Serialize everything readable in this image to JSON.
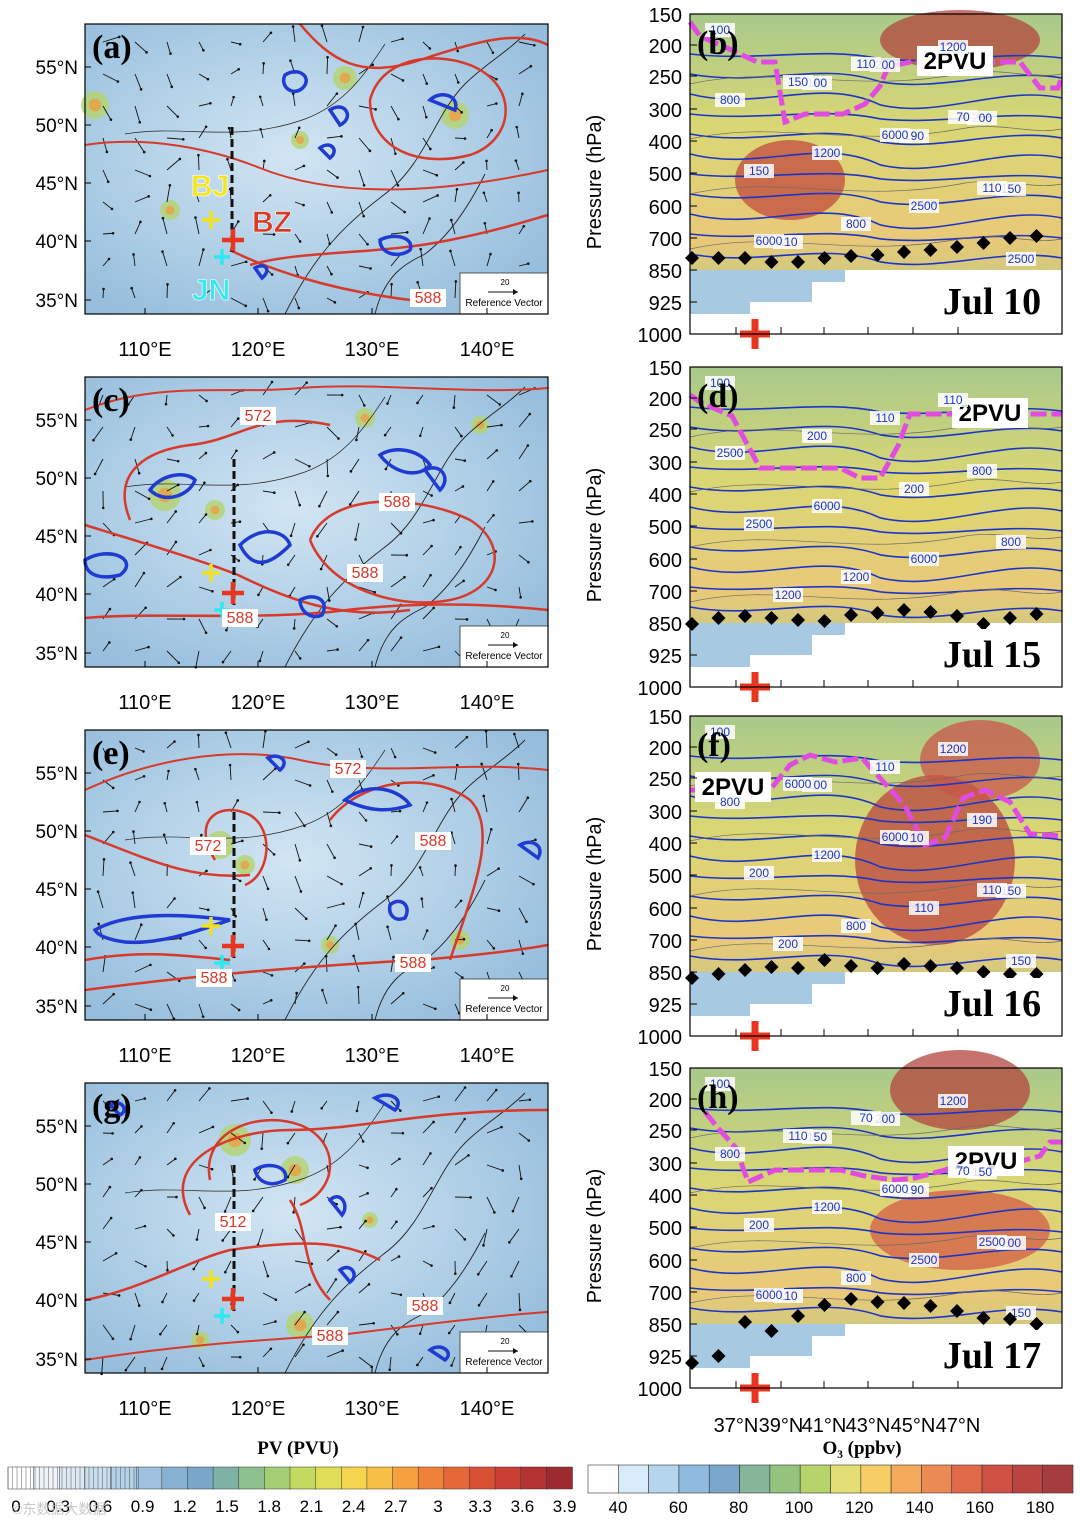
{
  "figure": {
    "maps": [
      {
        "panel_label": "(a)",
        "contour_labels": [
          "588"
        ],
        "site_labels": [
          "BJ",
          "BZ",
          "JN"
        ]
      },
      {
        "panel_label": "(c)",
        "contour_labels": [
          "588",
          "588",
          "588",
          "572"
        ],
        "site_labels": []
      },
      {
        "panel_label": "(e)",
        "contour_labels": [
          "588",
          "588",
          "588",
          "572",
          "572"
        ],
        "site_labels": []
      },
      {
        "panel_label": "(g)",
        "contour_labels": [
          "588",
          "588",
          "512"
        ],
        "site_labels": []
      }
    ],
    "map_lat_ticks": [
      "55°N",
      "50°N",
      "45°N",
      "40°N",
      "35°N"
    ],
    "map_lon_ticks": [
      "110°E",
      "120°E",
      "130°E",
      "140°E"
    ],
    "reference_vector": {
      "value": "20",
      "label": "Reference Vector"
    },
    "sections": [
      {
        "panel_label": "(b)",
        "date": "Jul 10",
        "pv_label": "2PVU",
        "contour_labels": [
          "100",
          "100",
          "190",
          "150",
          "110",
          "200",
          "200",
          "150",
          "800",
          "1200",
          "800",
          "1200",
          "2500",
          "2500",
          "150",
          "6000",
          "110",
          "6000",
          "110",
          "70"
        ]
      },
      {
        "panel_label": "(d)",
        "date": "Jul 15",
        "pv_label": "2PVU",
        "contour_labels": [
          "100",
          "200",
          "200",
          "800",
          "1200",
          "110",
          "800",
          "2500",
          "1200",
          "110",
          "2500",
          "6000",
          "6000"
        ]
      },
      {
        "panel_label": "(f)",
        "date": "Jul 16",
        "pv_label": "2PVU",
        "contour_labels": [
          "100",
          "100",
          "110",
          "150",
          "200",
          "110",
          "190",
          "200",
          "800",
          "1200",
          "800",
          "1200",
          "110",
          "150",
          "6000",
          "6000",
          "110"
        ]
      },
      {
        "panel_label": "(h)",
        "date": "Jul 17",
        "pv_label": "2PVU",
        "contour_labels": [
          "100",
          "150",
          "190",
          "100",
          "110",
          "200",
          "150",
          "200",
          "800",
          "1200",
          "800",
          "1200",
          "2500",
          "150",
          "110",
          "6000",
          "2500",
          "6000",
          "70",
          "70"
        ]
      }
    ],
    "section_y_axis_label": "Pressure (hPa)",
    "section_y_ticks": [
      "150",
      "200",
      "250",
      "300",
      "400",
      "500",
      "600",
      "700",
      "850",
      "925",
      "1000"
    ],
    "section_x_ticks": [
      "37°N",
      "39°N",
      "41°N",
      "43°N",
      "45°N",
      "47°N"
    ],
    "section_x_axis_label": "O₃ (ppbv)",
    "pv_colorbar": {
      "title": "PV (PVU)",
      "ticks": [
        "0",
        "0.3",
        "0.6",
        "0.9",
        "1.2",
        "1.5",
        "1.8",
        "2.1",
        "2.4",
        "2.7",
        "3",
        "3.3",
        "3.6",
        "3.9"
      ],
      "colors": [
        "#ffffff",
        "#eef4f9",
        "#dde9f3",
        "#cadfee",
        "#b4d1e7",
        "#9dc1de",
        "#86b1d3",
        "#7aa6c8",
        "#7fb2a6",
        "#8cc08c",
        "#a3cf72",
        "#c2da5e",
        "#dfde56",
        "#f4d54d",
        "#f8bf46",
        "#f6a040",
        "#ef823a",
        "#e56636",
        "#d94f34",
        "#c83e33",
        "#b33232",
        "#9d2a2f"
      ]
    },
    "o3_colorbar": {
      "ticks": [
        "40",
        "60",
        "80",
        "100",
        "120",
        "140",
        "160",
        "180"
      ],
      "colors": [
        "#ffffff",
        "#d7ebf8",
        "#b5d5ef",
        "#8fbbe0",
        "#7aa7cc",
        "#86b59a",
        "#93c47d",
        "#b7d46b",
        "#e3df74",
        "#f5cf63",
        "#f3ab5b",
        "#ec8a53",
        "#e0694a",
        "#cf5144",
        "#bb4440",
        "#a63c3e"
      ]
    },
    "watermark": "©东数据大数据"
  }
}
